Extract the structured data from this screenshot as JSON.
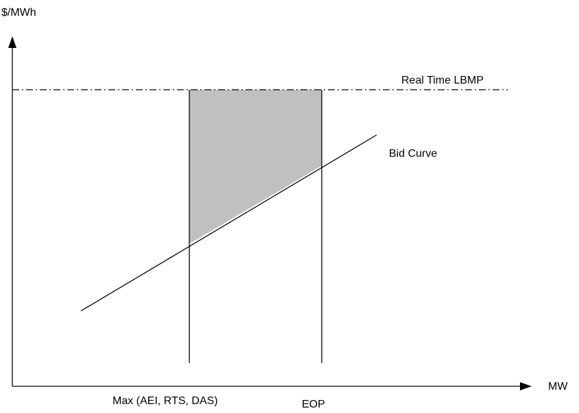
{
  "diagram": {
    "y_axis_label": "$/MWh",
    "x_axis_label": "MW",
    "price_line_label": "Real Time LBMP",
    "bid_curve_label": "Bid Curve",
    "left_bound_label": "Max (AEI, RTS, DAS)",
    "right_bound_label": "EOP",
    "shaded_region_color": "#c0c0c0",
    "line_color": "#000000"
  }
}
